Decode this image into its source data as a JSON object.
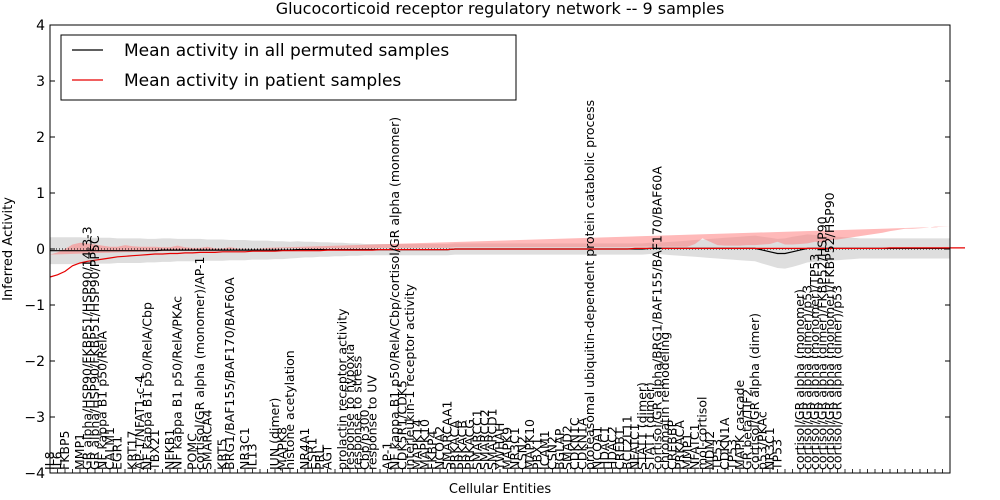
{
  "chart_data": {
    "type": "line",
    "title": "Glucocorticoid receptor regulatory network -- 9 samples",
    "xlabel": "Cellular Entities",
    "ylabel": "Inferred Activity",
    "ylim": [
      -4,
      4
    ],
    "yticks": [
      -4,
      -3,
      -2,
      -1,
      0,
      1,
      2,
      3,
      4
    ],
    "n_points": 121,
    "reference_line_y": 0,
    "legend_position": "top-left",
    "colors": {
      "permuted": "#000000",
      "permuted_band": "#bdbdbd",
      "patient": "#e60000",
      "patient_band": "#ff8080"
    },
    "series": [
      {
        "name": "Mean activity in all permuted samples",
        "key": "permuted",
        "values": [
          -0.03,
          -0.03,
          -0.03,
          -0.03,
          -0.03,
          -0.03,
          -0.03,
          -0.03,
          -0.03,
          -0.03,
          -0.03,
          -0.03,
          -0.03,
          -0.03,
          -0.03,
          -0.02,
          -0.02,
          -0.02,
          -0.02,
          -0.02,
          -0.02,
          -0.02,
          -0.02,
          -0.02,
          -0.02,
          -0.02,
          -0.02,
          -0.02,
          -0.02,
          -0.02,
          -0.02,
          -0.02,
          -0.02,
          -0.01,
          -0.01,
          -0.01,
          -0.01,
          -0.01,
          -0.01,
          -0.01,
          -0.01,
          -0.01,
          -0.01,
          -0.01,
          -0.01,
          -0.01,
          -0.01,
          -0.01,
          -0.01,
          -0.01,
          -0.01,
          -0.01,
          -0.01,
          -0.01,
          0,
          0,
          0,
          0,
          0,
          0,
          0,
          0,
          0,
          0,
          0,
          0,
          0,
          0,
          0,
          0,
          0,
          0,
          0,
          0,
          0,
          0,
          0,
          0,
          0,
          0,
          0.01,
          0.01,
          0.01,
          0.01,
          0.01,
          0.01,
          0.01,
          0.01,
          0.01,
          0.01,
          0.01,
          0.01,
          0.01,
          0.01,
          0.01,
          -0.02,
          -0.05,
          -0.08,
          -0.08,
          -0.05,
          -0.02,
          0.01,
          0.01,
          0.01,
          0.01,
          0.01,
          0.01,
          0.01,
          0.01,
          0.01,
          0.01,
          0.01,
          0.01,
          0.01,
          0.01,
          0.01,
          0.01,
          0.01,
          0.01,
          0.01,
          0.01
        ],
        "band": [
          0.24,
          0.24,
          0.24,
          0.24,
          0.24,
          0.23,
          0.23,
          0.23,
          0.23,
          0.22,
          0.22,
          0.22,
          0.22,
          0.21,
          0.21,
          0.21,
          0.21,
          0.2,
          0.2,
          0.2,
          0.2,
          0.19,
          0.19,
          0.19,
          0.18,
          0.18,
          0.18,
          0.17,
          0.17,
          0.17,
          0.16,
          0.16,
          0.15,
          0.15,
          0.14,
          0.14,
          0.13,
          0.13,
          0.12,
          0.12,
          0.11,
          0.11,
          0.1,
          0.1,
          0.1,
          0.1,
          0.1,
          0.1,
          0.1,
          0.1,
          0.1,
          0.1,
          0.1,
          0.1,
          0.1,
          0.1,
          0.1,
          0.1,
          0.1,
          0.1,
          0.1,
          0.1,
          0.1,
          0.1,
          0.1,
          0.1,
          0.1,
          0.1,
          0.1,
          0.1,
          0.1,
          0.1,
          0.1,
          0.1,
          0.1,
          0.1,
          0.1,
          0.1,
          0.1,
          0.1,
          0.1,
          0.1,
          0.11,
          0.12,
          0.13,
          0.14,
          0.15,
          0.16,
          0.17,
          0.18,
          0.19,
          0.2,
          0.21,
          0.22,
          0.23,
          0.24,
          0.25,
          0.26,
          0.27,
          0.27,
          0.26,
          0.25,
          0.24,
          0.23,
          0.22,
          0.21,
          0.2,
          0.19,
          0.18,
          0.18,
          0.18,
          0.18,
          0.18,
          0.18,
          0.18,
          0.18,
          0.18,
          0.18,
          0.18,
          0.18,
          0.18
        ]
      },
      {
        "name": "Mean activity in patient samples",
        "key": "patient",
        "values": [
          -0.5,
          -0.46,
          -0.4,
          -0.3,
          -0.25,
          -0.22,
          -0.2,
          -0.18,
          -0.16,
          -0.14,
          -0.13,
          -0.12,
          -0.11,
          -0.1,
          -0.09,
          -0.09,
          -0.08,
          -0.08,
          -0.07,
          -0.07,
          -0.06,
          -0.06,
          -0.06,
          -0.05,
          -0.05,
          -0.05,
          -0.05,
          -0.04,
          -0.04,
          -0.04,
          -0.04,
          -0.03,
          -0.03,
          -0.03,
          -0.03,
          -0.03,
          -0.03,
          -0.02,
          -0.02,
          -0.02,
          -0.02,
          -0.02,
          -0.02,
          -0.02,
          -0.01,
          -0.01,
          -0.01,
          -0.01,
          -0.01,
          -0.01,
          -0.01,
          -0.01,
          -0.01,
          -0.01,
          0,
          0,
          0,
          0,
          0,
          0,
          0,
          0,
          0,
          0,
          0,
          0,
          0,
          0,
          0,
          0,
          0,
          0,
          0,
          0,
          0,
          0,
          0,
          0,
          0.01,
          0.01,
          0.01,
          0.01,
          0.01,
          0.01,
          0.01,
          0.01,
          0.01,
          0.01,
          0.01,
          0.01,
          0.01,
          0.01,
          0.01,
          0.01,
          0.01,
          0.01,
          0.01,
          0.01,
          0.01,
          0.01,
          0.01,
          0.01,
          0.01,
          0.01,
          0.01,
          0.01,
          0.01,
          0.01,
          0.01,
          0.01,
          0.01,
          0.01,
          0.02,
          0.02,
          0.02,
          0.02,
          0.02,
          0.02,
          0.02,
          0.02,
          0.02,
          0.02,
          0.02
        ],
        "band": [
          0.4,
          0.4,
          0.4,
          0.38,
          0.36,
          0.32,
          0.28,
          0.24,
          0.2,
          0.18,
          0.2,
          0.17,
          0.15,
          0.14,
          0.13,
          0.12,
          0.11,
          0.14,
          0.1,
          0.09,
          0.08,
          0.1,
          0.07,
          0.06,
          0.08,
          0.06,
          0.05,
          0.05,
          0.05,
          0.04,
          0.04,
          0.04,
          0.04,
          0.04,
          0.03,
          0.03,
          0.03,
          0.03,
          0.03,
          0.03,
          0.03,
          0.03,
          0.03,
          0.03,
          0.03,
          0.03,
          0.03,
          0.03,
          0.03,
          0.03,
          0.03,
          0.03,
          0.03,
          0.03,
          0.03,
          0.03,
          0.03,
          0.03,
          0.03,
          0.03,
          0.03,
          0.03,
          0.03,
          0.03,
          0.03,
          0.03,
          0.03,
          0.03,
          0.03,
          0.03,
          0.03,
          0.03,
          0.03,
          0.03,
          0.03,
          0.03,
          0.03,
          0.03,
          0.03,
          0.03,
          0.03,
          0.03,
          0.03,
          0.03,
          0.03,
          0.03,
          0.08,
          0.18,
          0.12,
          0.06,
          0.05,
          0.05,
          0.05,
          0.06,
          0.06,
          0.07,
          0.08,
          0.12,
          0.07,
          0.07,
          0.08,
          0.09,
          0.12,
          0.1,
          0.15,
          0.16,
          0.18,
          0.2,
          0.22,
          0.24,
          0.26,
          0.28,
          0.3,
          0.32,
          0.34,
          0.34,
          0.35,
          0.36,
          0.38,
          0.38,
          0.38
        ]
      }
    ],
    "entity_labels": [
      {
        "i": 0,
        "text": "IL8"
      },
      {
        "i": 1,
        "text": "IL6"
      },
      {
        "i": 2,
        "text": "FKBP5"
      },
      {
        "i": 4,
        "text": "MMP1"
      },
      {
        "i": 5,
        "text": "GR alpha/HSP90/FKBP51/HSP90/14-3-3"
      },
      {
        "i": 6,
        "text": "GR alpha/HSP90/FKBP51/HSP90/PP5C"
      },
      {
        "i": 7,
        "text": "NF kappa B1 p50/RelA"
      },
      {
        "i": 8,
        "text": "CALM1"
      },
      {
        "i": 9,
        "text": "EGR1"
      },
      {
        "i": 11,
        "text": "KRT17"
      },
      {
        "i": 12,
        "text": "AP-1/NFAT1-c-4"
      },
      {
        "i": 13,
        "text": "NF kappa B1 p50/RelA/Cbp"
      },
      {
        "i": 14,
        "text": "TBX21"
      },
      {
        "i": 16,
        "text": "NFKB1"
      },
      {
        "i": 17,
        "text": "NF kappa B1 p50/RelA/PKAc"
      },
      {
        "i": 19,
        "text": "POMC"
      },
      {
        "i": 20,
        "text": "cortisol/GR alpha (monomer)/AP-1"
      },
      {
        "i": 21,
        "text": "SMARCA4"
      },
      {
        "i": 23,
        "text": "KRT5"
      },
      {
        "i": 24,
        "text": "BRG1/BAF155/BAF170/BAF60A"
      },
      {
        "i": 26,
        "text": "NR3C1"
      },
      {
        "i": 27,
        "text": "IL13"
      },
      {
        "i": 30,
        "text": "JUN (dimer)"
      },
      {
        "i": 31,
        "text": "MAPK8"
      },
      {
        "i": 32,
        "text": "histone acetylation"
      },
      {
        "i": 34,
        "text": "NR4A1"
      },
      {
        "i": 35,
        "text": "ESR1"
      },
      {
        "i": 36,
        "text": "PRL"
      },
      {
        "i": 37,
        "text": "AGT"
      },
      {
        "i": 39,
        "text": "prolactin receptor activity"
      },
      {
        "i": 40,
        "text": "response to hypoxia"
      },
      {
        "i": 41,
        "text": "response to stress"
      },
      {
        "i": 42,
        "text": "Cbp/p300"
      },
      {
        "i": 43,
        "text": "response to UV"
      },
      {
        "i": 45,
        "text": "AP-1"
      },
      {
        "i": 46,
        "text": "NF kappa B1 p50/RelA/Cbp/cortisol/GR alpha (monomer)"
      },
      {
        "i": 47,
        "text": "CDK5R1/CDK5"
      },
      {
        "i": 48,
        "text": "interleukin-1 receptor activity"
      },
      {
        "i": 49,
        "text": "MAPK14"
      },
      {
        "i": 50,
        "text": "MAPK10"
      },
      {
        "i": 51,
        "text": "FKBP4"
      },
      {
        "i": 52,
        "text": "NCOA2"
      },
      {
        "i": 53,
        "text": "SMARCAA1"
      },
      {
        "i": 54,
        "text": "PRKACA"
      },
      {
        "i": 55,
        "text": "PRKACB"
      },
      {
        "i": 56,
        "text": "PRKACG"
      },
      {
        "i": 57,
        "text": "SMARCC1"
      },
      {
        "i": 58,
        "text": "SMARCC2"
      },
      {
        "i": 59,
        "text": "SMARCD1"
      },
      {
        "i": 60,
        "text": "YWHAH"
      },
      {
        "i": 61,
        "text": "MAPK9"
      },
      {
        "i": 62,
        "text": "NR3C1"
      },
      {
        "i": 63,
        "text": "CSN2"
      },
      {
        "i": 64,
        "text": "MAPK10"
      },
      {
        "i": 65,
        "text": "PBX1"
      },
      {
        "i": 66,
        "text": "ICAM1"
      },
      {
        "i": 67,
        "text": "CSN2"
      },
      {
        "i": 68,
        "text": "BGLAP"
      },
      {
        "i": 69,
        "text": "SMAD2"
      },
      {
        "i": 70,
        "text": "CDKN1C"
      },
      {
        "i": 71,
        "text": "CDKN1A"
      },
      {
        "i": 72,
        "text": "proteasomal ubiquitin-dependent protein catabolic process"
      },
      {
        "i": 73,
        "text": "NCOA1"
      },
      {
        "i": 74,
        "text": "HDAC1"
      },
      {
        "i": 75,
        "text": "HDAC2"
      },
      {
        "i": 76,
        "text": "CREB1"
      },
      {
        "i": 77,
        "text": "BCL2L11"
      },
      {
        "i": 78,
        "text": "NFATC1"
      },
      {
        "i": 79,
        "text": "STAT1 (dimer)"
      },
      {
        "i": 80,
        "text": "STAT1 (dimer)"
      },
      {
        "i": 81,
        "text": "cortisol/GR alpha/BRG1/BAF155/BAF170/BAF60A"
      },
      {
        "i": 82,
        "text": "chromatin remodeling"
      },
      {
        "i": 83,
        "text": "CREBBP"
      },
      {
        "i": 84,
        "text": "PRKACA"
      },
      {
        "i": 85,
        "text": "MMP1"
      },
      {
        "i": 86,
        "text": "NFATC1"
      },
      {
        "i": 87,
        "text": "mol-cortisol"
      },
      {
        "i": 88,
        "text": "MDM2"
      },
      {
        "i": 89,
        "text": "TP53"
      },
      {
        "i": 90,
        "text": "CDKN1A"
      },
      {
        "i": 91,
        "text": "TP53"
      },
      {
        "i": 92,
        "text": "MAPK cascade"
      },
      {
        "i": 93,
        "text": "GR beta/TIF2"
      },
      {
        "i": 94,
        "text": "cortisol/GR alpha (dimer)"
      },
      {
        "i": 95,
        "text": "p53/PKAc"
      },
      {
        "i": 96,
        "text": "NR3C1"
      },
      {
        "i": 97,
        "text": "TP53"
      },
      {
        "i": 100,
        "text": "cortisol/GR alpha (monomer)"
      },
      {
        "i": 101,
        "text": "cortisol/GR alpha (dimer)/p53"
      },
      {
        "i": 102,
        "text": "cortisol/GR alpha (monomer)/TP53"
      },
      {
        "i": 103,
        "text": "cortisol/GR alpha (dimer)/FKBP52/HSP90"
      },
      {
        "i": 104,
        "text": "cortisol/GR alpha (monomer)/FKBP52/HSP90"
      },
      {
        "i": 105,
        "text": "cortisol/GR alpha (dimer)/p53"
      }
    ]
  }
}
